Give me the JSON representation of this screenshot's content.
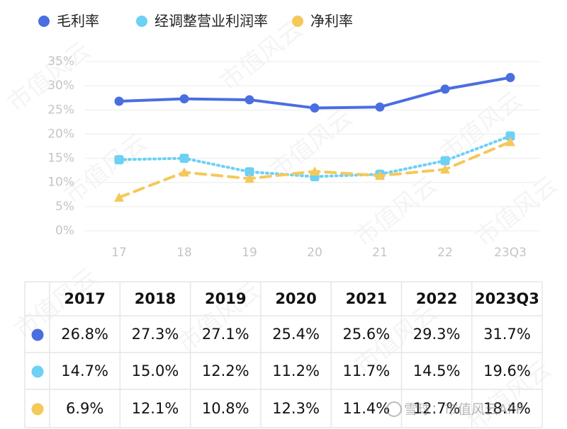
{
  "chart_data": {
    "type": "line",
    "categories": [
      "17",
      "18",
      "19",
      "20",
      "21",
      "22",
      "23Q3"
    ],
    "series": [
      {
        "name": "毛利率",
        "color": "#4a6ee0",
        "line_style": "solid",
        "marker": "circle",
        "values": [
          26.8,
          27.3,
          27.1,
          25.4,
          25.6,
          29.3,
          31.7
        ]
      },
      {
        "name": "经调整营业利润率",
        "color": "#6dd0f5",
        "line_style": "dotted",
        "marker": "square",
        "values": [
          14.7,
          15.0,
          12.2,
          11.2,
          11.7,
          14.5,
          19.6
        ]
      },
      {
        "name": "净利率",
        "color": "#f5c85a",
        "line_style": "dashed",
        "marker": "triangle",
        "values": [
          6.9,
          12.1,
          10.8,
          12.3,
          11.4,
          12.7,
          18.4
        ]
      }
    ],
    "ylim": [
      0,
      35
    ],
    "yticks": [
      {
        "value": 0,
        "label": "0%"
      },
      {
        "value": 5,
        "label": "5%"
      },
      {
        "value": 10,
        "label": "10%"
      },
      {
        "value": 15,
        "label": "15%"
      },
      {
        "value": 20,
        "label": "20%"
      },
      {
        "value": 25,
        "label": "25%"
      },
      {
        "value": 30,
        "label": "30%"
      },
      {
        "value": 35,
        "label": "35%"
      }
    ],
    "grid": true,
    "legend": "top"
  },
  "table": {
    "header": [
      "2017",
      "2018",
      "2019",
      "2020",
      "2021",
      "2022",
      "2023Q3"
    ],
    "rows": [
      [
        "26.8%",
        "27.3%",
        "27.1%",
        "25.4%",
        "25.6%",
        "29.3%",
        "31.7%"
      ],
      [
        "14.7%",
        "15.0%",
        "12.2%",
        "11.2%",
        "11.7%",
        "14.5%",
        "19.6%"
      ],
      [
        "6.9%",
        "12.1%",
        "10.8%",
        "12.3%",
        "11.4%",
        "12.7%",
        "18.4%"
      ]
    ]
  },
  "watermark": "市值风云",
  "credit": "雪球：市值风云APP"
}
